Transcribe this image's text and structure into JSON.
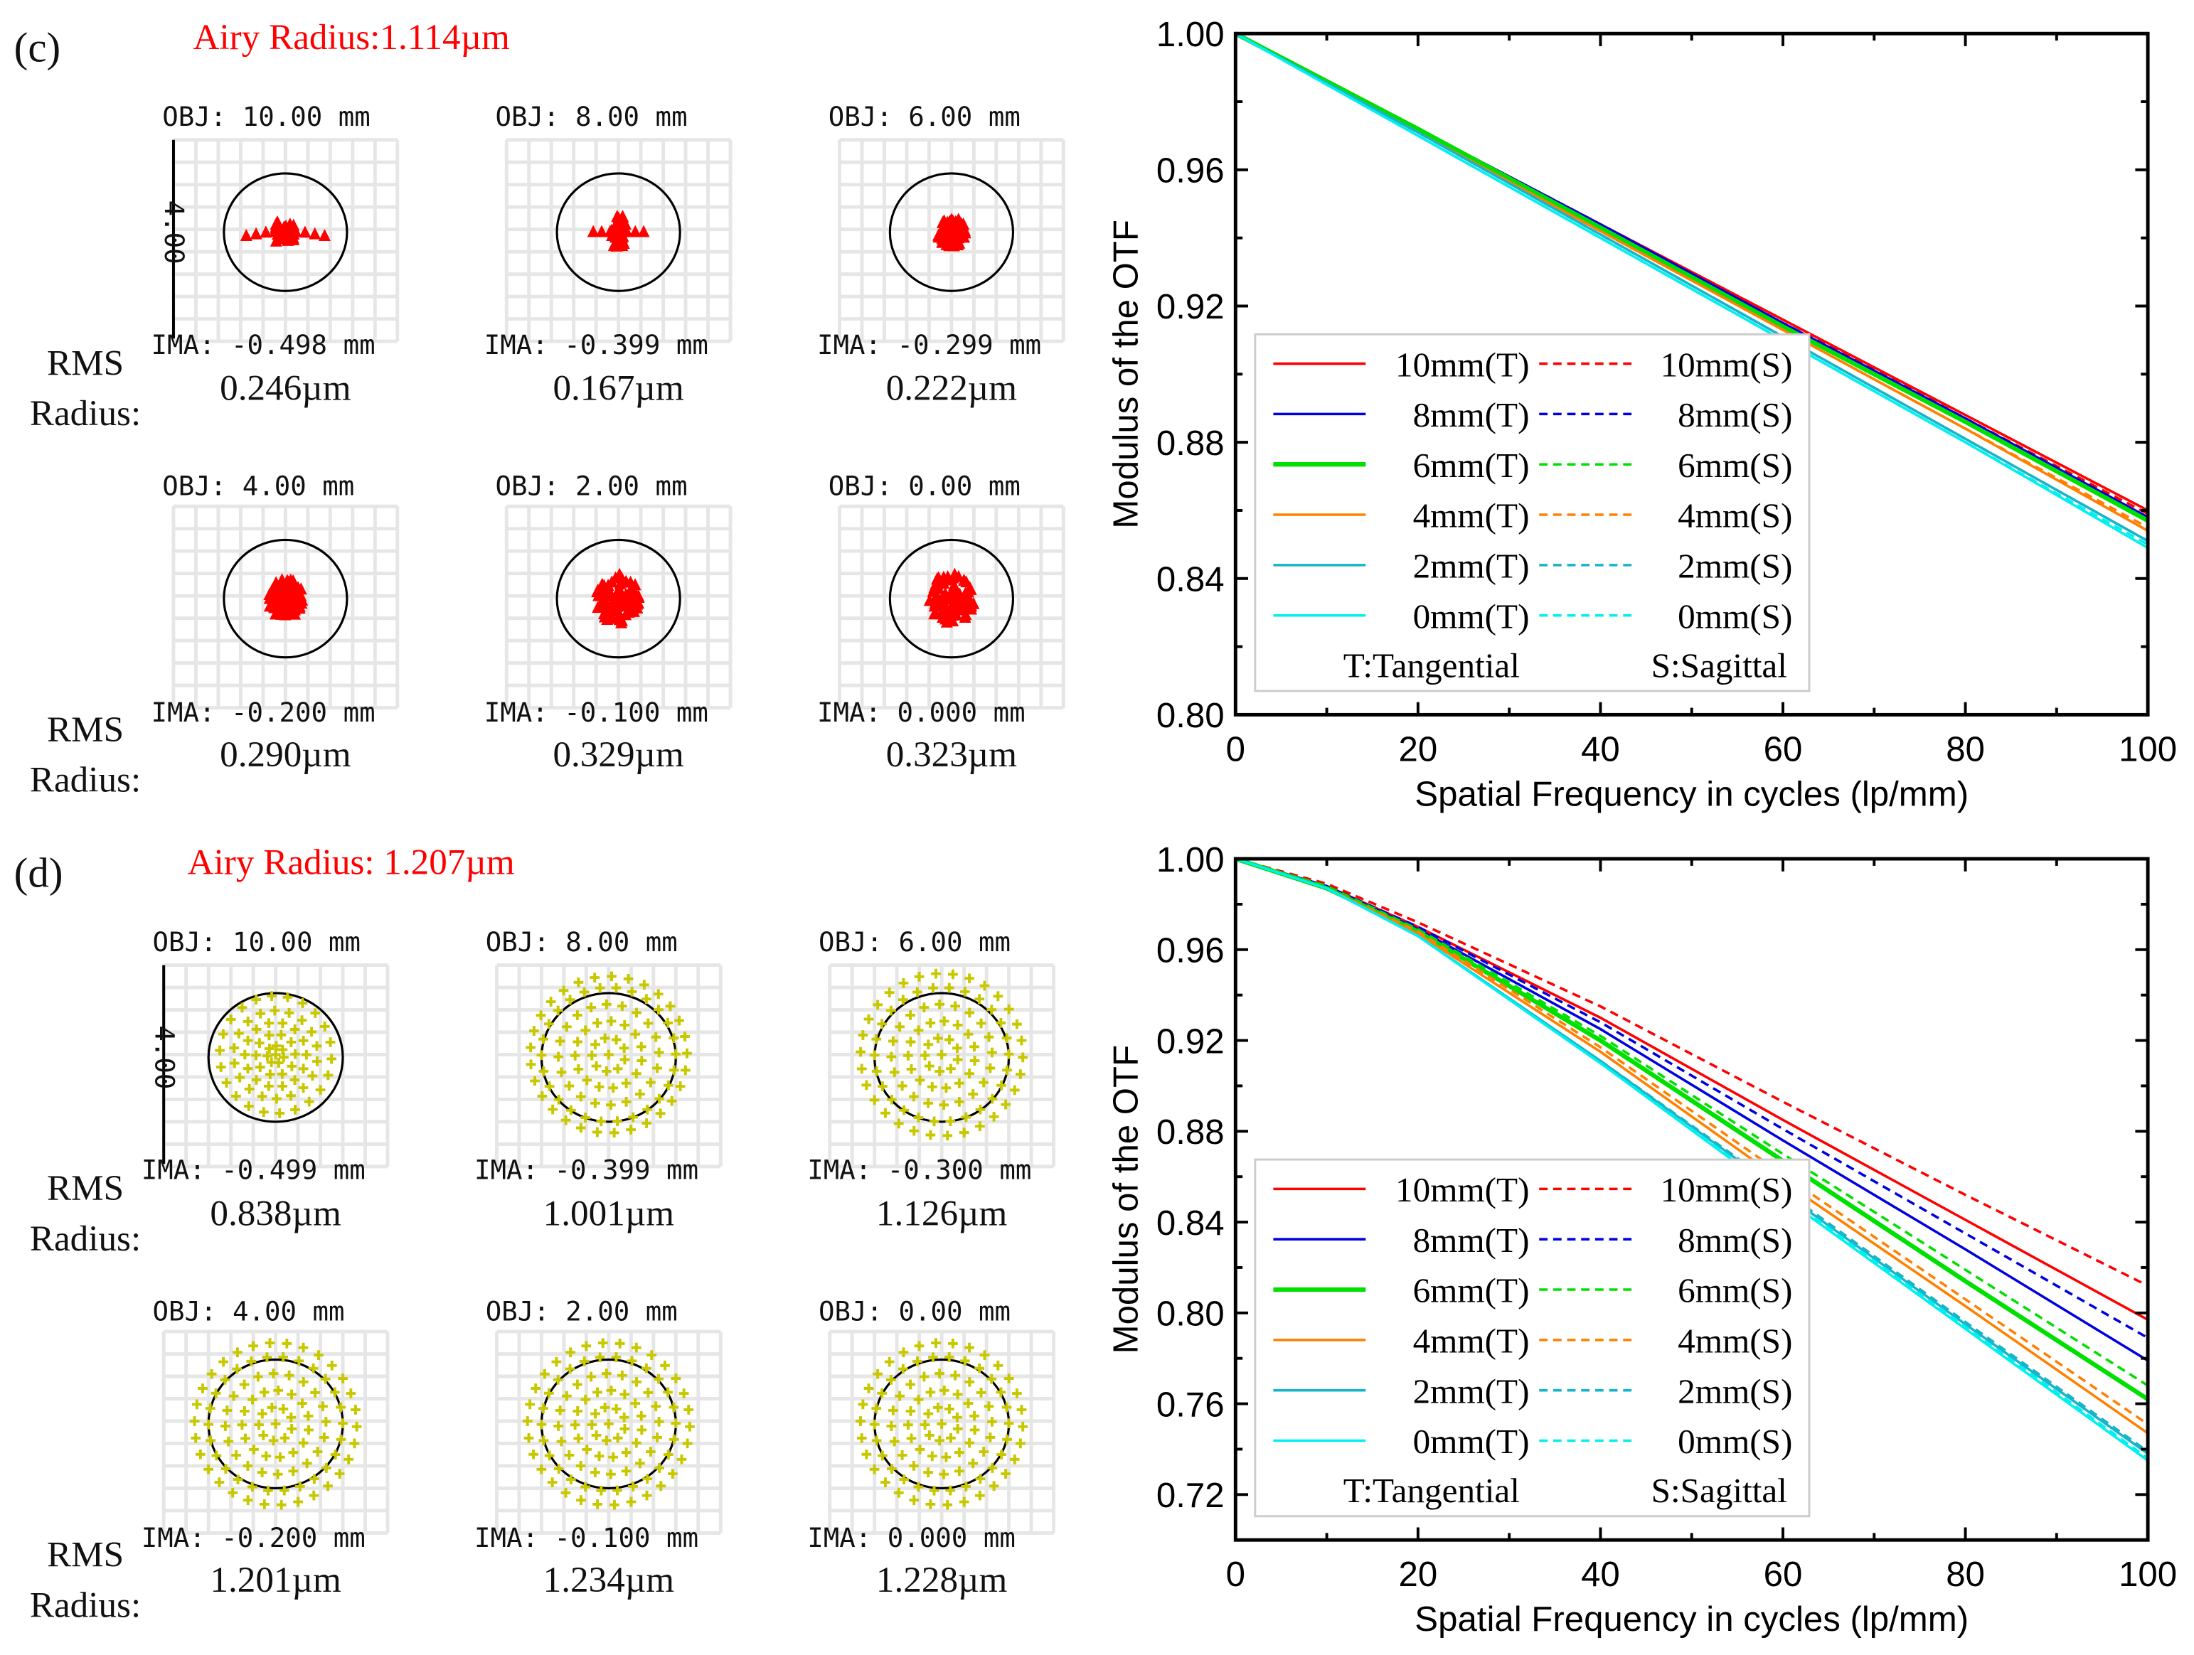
{
  "panels": [
    {
      "label": "(c)",
      "airy": "Airy Radius:1.114µm",
      "spot_style": "triangle",
      "spot_color": "#ff0000",
      "scale_label": "4.00",
      "rms_label_1": "RMS",
      "rms_label_2": "Radius:",
      "spots": [
        {
          "obj": "OBJ: 10.00 mm",
          "ima": "IMA: -0.498 mm",
          "rms": "0.246µm"
        },
        {
          "obj": "OBJ: 8.00 mm",
          "ima": "IMA: -0.399 mm",
          "rms": "0.167µm"
        },
        {
          "obj": "OBJ: 6.00 mm",
          "ima": "IMA: -0.299 mm",
          "rms": "0.222µm"
        },
        {
          "obj": "OBJ: 4.00 mm",
          "ima": "IMA: -0.200 mm",
          "rms": "0.290µm"
        },
        {
          "obj": "OBJ: 2.00 mm",
          "ima": "IMA: -0.100 mm",
          "rms": "0.329µm"
        },
        {
          "obj": "OBJ: 0.00 mm",
          "ima": "IMA: 0.000 mm",
          "rms": "0.323µm"
        }
      ]
    },
    {
      "label": "(d)",
      "airy": "Airy Radius: 1.207µm",
      "spot_style": "plus",
      "spot_color": "#c8c800",
      "scale_label": "4.00",
      "rms_label_1": "RMS",
      "rms_label_2": "Radius:",
      "spots": [
        {
          "obj": "OBJ: 10.00 mm",
          "ima": "IMA: -0.499 mm",
          "rms": "0.838µm"
        },
        {
          "obj": "OBJ: 8.00 mm",
          "ima": "IMA: -0.399 mm",
          "rms": "1.001µm"
        },
        {
          "obj": "OBJ: 6.00 mm",
          "ima": "IMA: -0.300 mm",
          "rms": "1.126µm"
        },
        {
          "obj": "OBJ: 4.00 mm",
          "ima": "IMA: -0.200 mm",
          "rms": "1.201µm"
        },
        {
          "obj": "OBJ: 2.00 mm",
          "ima": "IMA: -0.100 mm",
          "rms": "1.234µm"
        },
        {
          "obj": "OBJ: 0.00 mm",
          "ima": "IMA: 0.000 mm",
          "rms": "1.228µm"
        }
      ]
    }
  ],
  "chart_data": [
    {
      "type": "line",
      "title": "",
      "xlabel": "Spatial Frequency in cycles (lp/mm)",
      "ylabel": "Modulus of the OTF",
      "xlim": [
        0,
        100
      ],
      "ylim": [
        0.8,
        1.0
      ],
      "xticks": [
        0,
        20,
        40,
        60,
        80,
        100
      ],
      "yticks": [
        0.8,
        0.84,
        0.88,
        0.92,
        0.96,
        1.0
      ],
      "ytick_labels": [
        "0.80",
        "0.84",
        "0.88",
        "0.92",
        "0.96",
        "1.00"
      ],
      "legend_position": "bottom-left",
      "legend_note_t": "T:Tangential",
      "legend_note_s": "S:Sagittal",
      "x": [
        0,
        20,
        40,
        60,
        80,
        100
      ],
      "series": [
        {
          "name": "10mm(T)",
          "color": "#ff0000",
          "dash": false,
          "values": [
            1,
            0.972,
            0.944,
            0.916,
            0.888,
            0.86
          ]
        },
        {
          "name": "10mm(S)",
          "color": "#ff0000",
          "dash": true,
          "values": [
            1,
            0.972,
            0.944,
            0.916,
            0.887,
            0.859
          ]
        },
        {
          "name": "8mm(T)",
          "color": "#0000e0",
          "dash": false,
          "values": [
            1,
            0.972,
            0.944,
            0.915,
            0.887,
            0.858
          ]
        },
        {
          "name": "8mm(S)",
          "color": "#0000e0",
          "dash": true,
          "values": [
            1,
            0.972,
            0.944,
            0.915,
            0.887,
            0.858
          ]
        },
        {
          "name": "6mm(T)",
          "color": "#00e000",
          "dash": false,
          "values": [
            1,
            0.972,
            0.943,
            0.914,
            0.886,
            0.857
          ]
        },
        {
          "name": "6mm(S)",
          "color": "#00e000",
          "dash": true,
          "values": [
            1,
            0.972,
            0.943,
            0.914,
            0.886,
            0.857
          ]
        },
        {
          "name": "4mm(T)",
          "color": "#ff8000",
          "dash": false,
          "values": [
            1,
            0.971,
            0.942,
            0.913,
            0.884,
            0.854
          ]
        },
        {
          "name": "4mm(S)",
          "color": "#ff8000",
          "dash": true,
          "values": [
            1,
            0.971,
            0.942,
            0.913,
            0.884,
            0.855
          ]
        },
        {
          "name": "2mm(T)",
          "color": "#18b4c8",
          "dash": false,
          "values": [
            1,
            0.971,
            0.941,
            0.911,
            0.881,
            0.851
          ]
        },
        {
          "name": "2mm(S)",
          "color": "#18b4c8",
          "dash": true,
          "values": [
            1,
            0.971,
            0.941,
            0.911,
            0.881,
            0.851
          ]
        },
        {
          "name": "0mm(T)",
          "color": "#00f0f0",
          "dash": false,
          "values": [
            1,
            0.97,
            0.94,
            0.91,
            0.88,
            0.849
          ]
        },
        {
          "name": "0mm(S)",
          "color": "#00f0f0",
          "dash": true,
          "values": [
            1,
            0.97,
            0.94,
            0.91,
            0.88,
            0.85
          ]
        }
      ]
    },
    {
      "type": "line",
      "title": "",
      "xlabel": "Spatial Frequency in cycles (lp/mm)",
      "ylabel": "Modulus of the OTF",
      "xlim": [
        0,
        100
      ],
      "ylim": [
        0.7,
        1.0
      ],
      "xticks": [
        0,
        20,
        40,
        60,
        80,
        100
      ],
      "yticks": [
        0.72,
        0.76,
        0.8,
        0.84,
        0.88,
        0.92,
        0.96,
        1.0
      ],
      "ytick_labels": [
        "0.72",
        "0.76",
        "0.80",
        "0.84",
        "0.88",
        "0.92",
        "0.96",
        "1.00"
      ],
      "legend_position": "bottom-left",
      "legend_note_t": "T:Tangential",
      "legend_note_s": "S:Sagittal",
      "x": [
        0,
        10,
        20,
        40,
        60,
        80,
        100
      ],
      "series": [
        {
          "name": "10mm(T)",
          "color": "#ff0000",
          "dash": false,
          "values": [
            1,
            0.988,
            0.97,
            0.93,
            0.885,
            0.841,
            0.797
          ]
        },
        {
          "name": "10mm(S)",
          "color": "#ff0000",
          "dash": true,
          "values": [
            1,
            0.989,
            0.972,
            0.935,
            0.893,
            0.852,
            0.812
          ]
        },
        {
          "name": "8mm(T)",
          "color": "#0000e0",
          "dash": false,
          "values": [
            1,
            0.988,
            0.969,
            0.925,
            0.876,
            0.828,
            0.779
          ]
        },
        {
          "name": "8mm(S)",
          "color": "#0000e0",
          "dash": true,
          "values": [
            1,
            0.988,
            0.97,
            0.928,
            0.881,
            0.835,
            0.789
          ]
        },
        {
          "name": "6mm(T)",
          "color": "#00e000",
          "dash": false,
          "values": [
            1,
            0.987,
            0.968,
            0.92,
            0.867,
            0.814,
            0.762
          ]
        },
        {
          "name": "6mm(S)",
          "color": "#00e000",
          "dash": true,
          "values": [
            1,
            0.988,
            0.969,
            0.922,
            0.87,
            0.819,
            0.768
          ]
        },
        {
          "name": "4mm(T)",
          "color": "#ff8000",
          "dash": false,
          "values": [
            1,
            0.987,
            0.967,
            0.915,
            0.858,
            0.803,
            0.747
          ]
        },
        {
          "name": "4mm(S)",
          "color": "#ff8000",
          "dash": true,
          "values": [
            1,
            0.987,
            0.968,
            0.917,
            0.861,
            0.806,
            0.751
          ]
        },
        {
          "name": "2mm(T)",
          "color": "#18b4c8",
          "dash": false,
          "values": [
            1,
            0.987,
            0.966,
            0.911,
            0.853,
            0.795,
            0.738
          ]
        },
        {
          "name": "2mm(S)",
          "color": "#18b4c8",
          "dash": true,
          "values": [
            1,
            0.987,
            0.966,
            0.911,
            0.854,
            0.796,
            0.739
          ]
        },
        {
          "name": "0mm(T)",
          "color": "#00f0f0",
          "dash": false,
          "values": [
            1,
            0.987,
            0.966,
            0.91,
            0.851,
            0.793,
            0.735
          ]
        },
        {
          "name": "0mm(S)",
          "color": "#00f0f0",
          "dash": true,
          "values": [
            1,
            0.987,
            0.966,
            0.91,
            0.852,
            0.794,
            0.736
          ]
        }
      ]
    }
  ]
}
